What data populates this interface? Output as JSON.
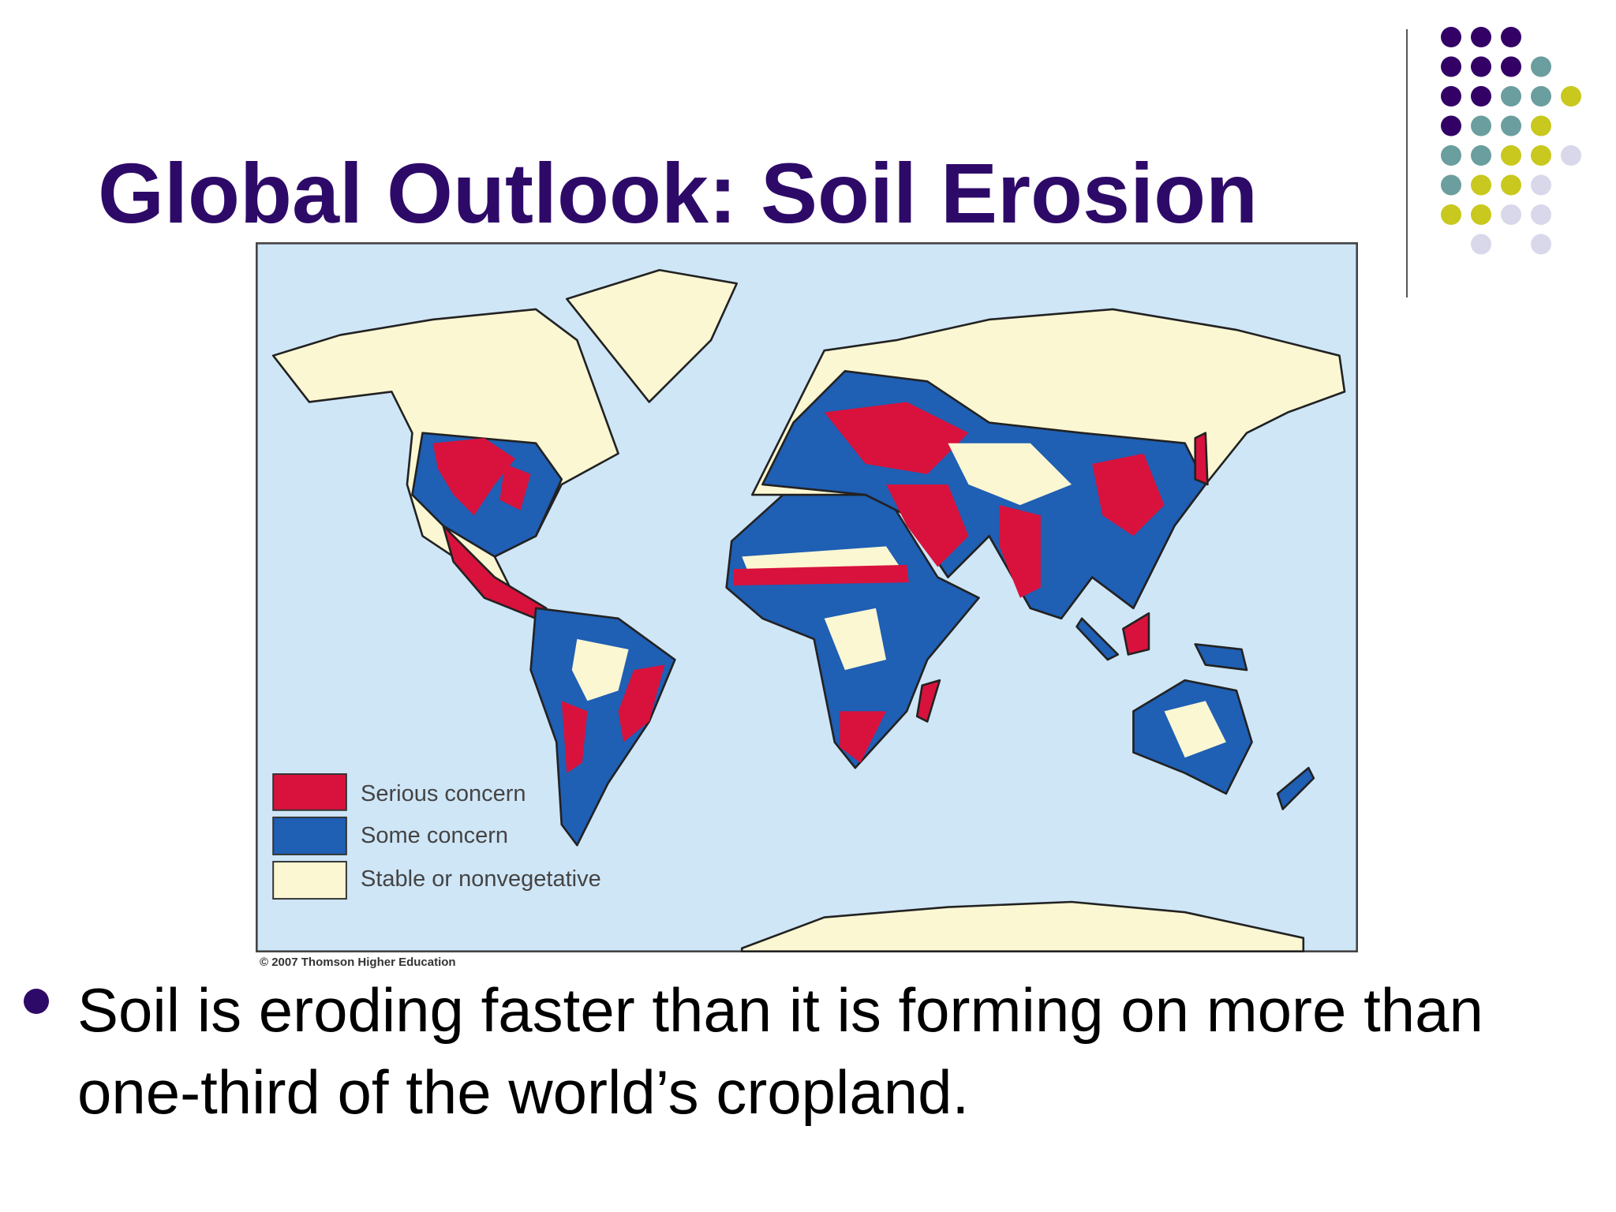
{
  "title": "Global Outlook: Soil Erosion",
  "map": {
    "legend": [
      "Serious concern",
      "Some concern",
      "Stable or nonvegetative"
    ],
    "credit": "© 2007 Thomson Higher Education"
  },
  "bullets": [
    "Soil is eroding faster than it is forming on more than one-third of the world’s cropland."
  ]
}
